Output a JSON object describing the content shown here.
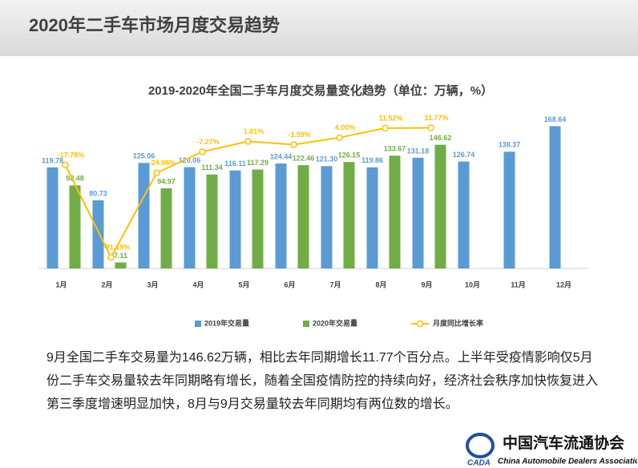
{
  "header": {
    "title": "2020年二手车市场月度交易趋势"
  },
  "chart_data": {
    "type": "bar",
    "title": "2019-2020年全国二手车月度交易量变化趋势（单位：万辆，%）",
    "categories": [
      "1月",
      "2月",
      "3月",
      "4月",
      "5月",
      "6月",
      "7月",
      "8月",
      "9月",
      "10月",
      "11月",
      "12月"
    ],
    "series": [
      {
        "name": "2019年交易量",
        "color": "#5b9bd5",
        "type": "bar",
        "values": [
          119.78,
          80.73,
          125.06,
          120.06,
          116.11,
          124.44,
          121.3,
          119.86,
          131.18,
          126.74,
          138.37,
          168.64
        ],
        "value_labels": [
          "119.78",
          "80.73",
          "125.06",
          "120.06",
          "116.11",
          "124.44",
          "121.30",
          "119.86",
          "131.18",
          "126.74",
          "138.37",
          "168.64"
        ]
      },
      {
        "name": "2020年交易量",
        "color": "#70ad47",
        "type": "bar",
        "values": [
          98.48,
          7.11,
          94.97,
          111.34,
          117.29,
          122.46,
          126.15,
          133.67,
          146.62,
          null,
          null,
          null
        ],
        "value_labels": [
          "98.48",
          "7.11",
          "94.97",
          "111.34",
          "117.29",
          "122.46",
          "126.15",
          "133.67",
          "146.62",
          null,
          null,
          null
        ]
      },
      {
        "name": "月度同比增长率",
        "color": "#ffc000",
        "type": "line",
        "axis": "y2",
        "values": [
          -17.78,
          -91.19,
          -24.06,
          -7.27,
          1.01,
          -1.59,
          4,
          11.52,
          11.77,
          null,
          null,
          null
        ],
        "value_labels": [
          "-17.78%",
          "-91.19%",
          "-24.06%",
          "-7.27%",
          "1.01%",
          "-1.59%",
          "4.00%",
          "11.52%",
          "11.77%",
          null,
          null,
          null
        ]
      }
    ],
    "ylim": [
      0,
      170
    ],
    "y2lim": [
      -100,
      14
    ],
    "legend": "bottom"
  },
  "paragraph": "9月全国二手车交易量为146.62万辆，相比去年同期增长11.77个百分点。上半年受疫情影响仅5月份二手车交易量较去年同期略有增长，随着全国疫情防控的持续向好，经济社会秩序加快恢复进入第三季度增速明显加快，8月与9月交易量较去年同期均有两位数的增长。",
  "logo": {
    "name": "中国汽车流通协会",
    "english": "China Automobile Dealers Association",
    "abbr": "CADA"
  }
}
